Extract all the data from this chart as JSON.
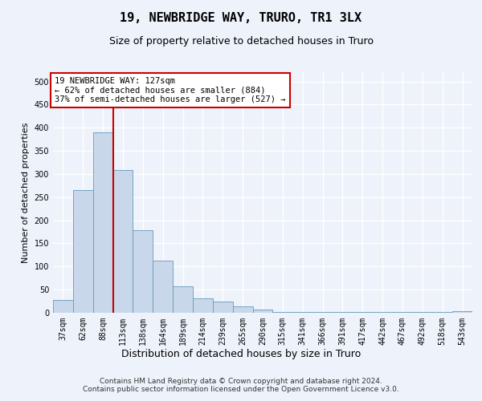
{
  "title": "19, NEWBRIDGE WAY, TRURO, TR1 3LX",
  "subtitle": "Size of property relative to detached houses in Truro",
  "xlabel": "Distribution of detached houses by size in Truro",
  "ylabel": "Number of detached properties",
  "bar_labels": [
    "37sqm",
    "62sqm",
    "88sqm",
    "113sqm",
    "138sqm",
    "164sqm",
    "189sqm",
    "214sqm",
    "239sqm",
    "265sqm",
    "290sqm",
    "315sqm",
    "341sqm",
    "366sqm",
    "391sqm",
    "417sqm",
    "442sqm",
    "467sqm",
    "492sqm",
    "518sqm",
    "543sqm"
  ],
  "bar_heights": [
    28,
    265,
    390,
    308,
    178,
    113,
    57,
    32,
    24,
    14,
    7,
    2,
    1,
    1,
    1,
    1,
    1,
    1,
    1,
    1,
    3
  ],
  "bar_color": "#c8d8ea",
  "bar_edgecolor": "#6699bb",
  "ylim": [
    0,
    520
  ],
  "yticks": [
    0,
    50,
    100,
    150,
    200,
    250,
    300,
    350,
    400,
    450,
    500
  ],
  "vline_x": 2.5,
  "vline_color": "#cc0000",
  "annotation_text": "19 NEWBRIDGE WAY: 127sqm\n← 62% of detached houses are smaller (884)\n37% of semi-detached houses are larger (527) →",
  "annotation_box_facecolor": "#ffffff",
  "annotation_box_edgecolor": "#cc0000",
  "footer": "Contains HM Land Registry data © Crown copyright and database right 2024.\nContains public sector information licensed under the Open Government Licence v3.0.",
  "background_color": "#eef2fb",
  "grid_color": "#ffffff",
  "title_fontsize": 11,
  "subtitle_fontsize": 9,
  "ylabel_fontsize": 8,
  "xlabel_fontsize": 9,
  "tick_fontsize": 7,
  "annotation_fontsize": 7.5
}
